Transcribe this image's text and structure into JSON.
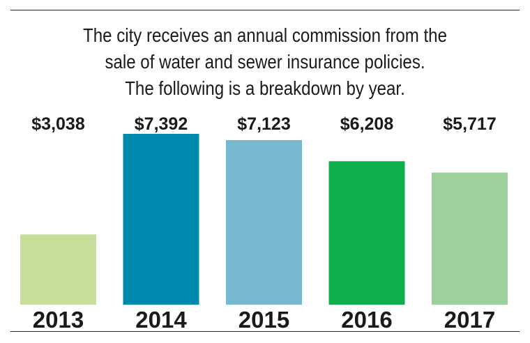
{
  "chart_data": {
    "type": "bar",
    "title_lines": [
      "The city receives an annual commission from the",
      "sale of water and sewer insurance policies.",
      "The following is a breakdown by year."
    ],
    "categories": [
      "2013",
      "2014",
      "2015",
      "2016",
      "2017"
    ],
    "values": [
      3038,
      7392,
      7123,
      6208,
      5717
    ],
    "value_labels": [
      "$3,038",
      "$7,392",
      "$7,123",
      "$6,208",
      "$5,717"
    ],
    "colors": [
      "#c5df9b",
      "#0089ae",
      "#77b8d0",
      "#0fb04c",
      "#9dd19c"
    ],
    "xlabel": "",
    "ylabel": "",
    "ylim": [
      0,
      7392
    ],
    "grid": false,
    "legend": "none"
  }
}
